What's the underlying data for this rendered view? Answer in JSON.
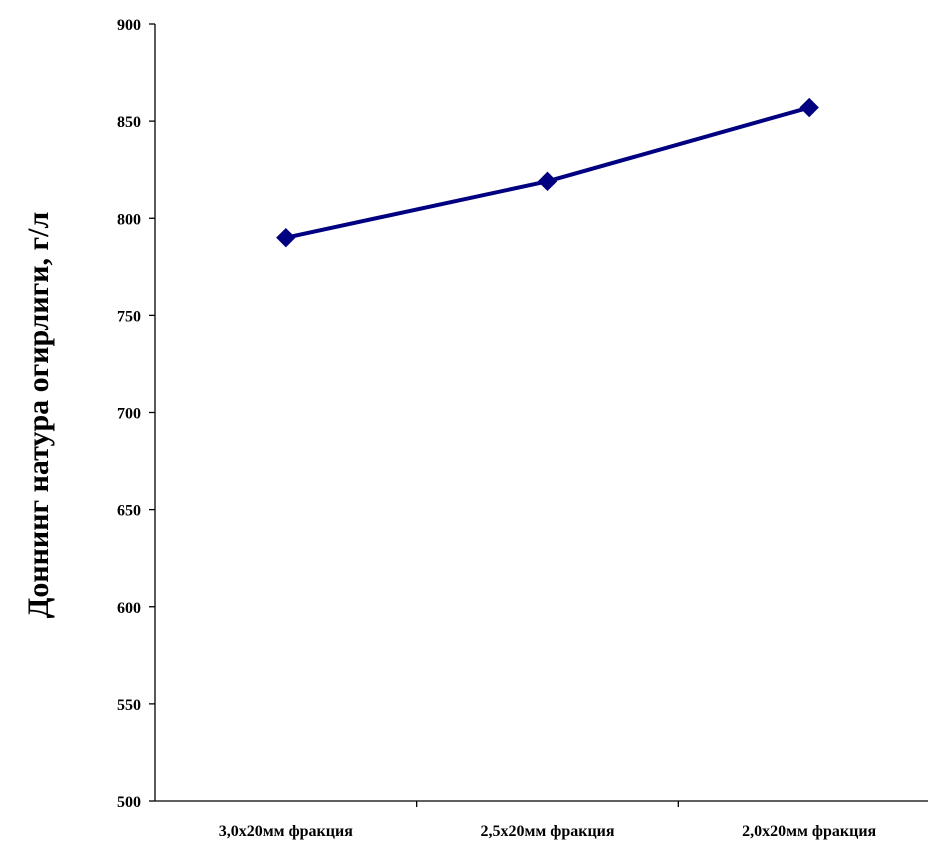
{
  "chart_data": {
    "type": "line",
    "title": "",
    "xlabel": "",
    "ylabel": "Доннинг натура огирлиги, г/л",
    "categories": [
      "3,0x20мм фракция",
      "2,5x20мм фракция",
      "2,0x20мм фракция"
    ],
    "series": [
      {
        "values": [
          790,
          819,
          857
        ],
        "color": "#000080",
        "marker": "diamond"
      }
    ],
    "ylim": [
      500,
      900
    ],
    "yticks": [
      500,
      550,
      600,
      650,
      700,
      750,
      800,
      850,
      900
    ],
    "grid": false,
    "legend": "none"
  }
}
